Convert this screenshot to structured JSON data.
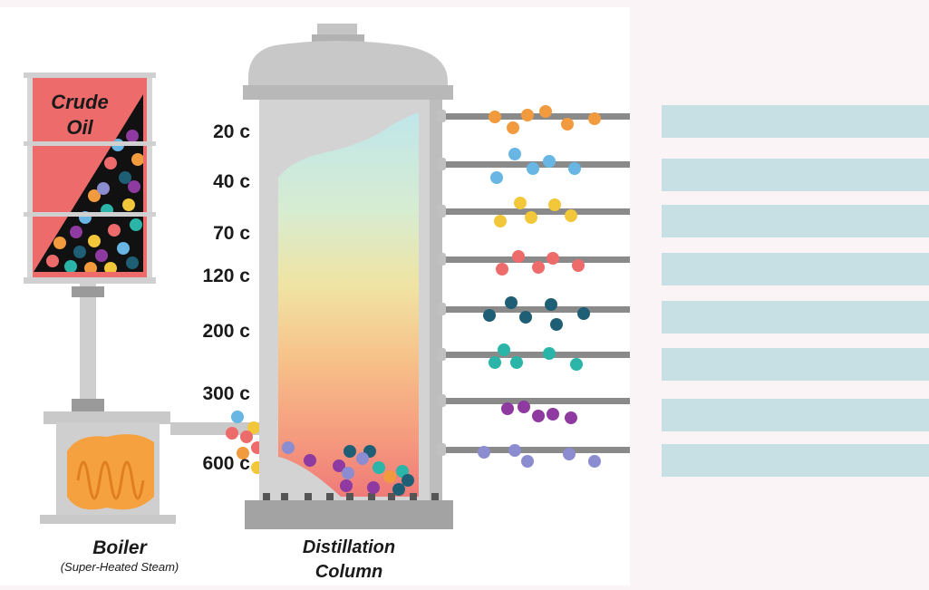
{
  "crude_oil": {
    "label_line1": "Crude",
    "label_line2": "Oil"
  },
  "temperatures": [
    "20 c",
    "40 c",
    "70 c",
    "120 c",
    "200 c",
    "300 c",
    "600 c"
  ],
  "boiler": {
    "label": "Boiler",
    "sublabel": "(Super-Heated Steam)"
  },
  "column": {
    "label_line1": "Distillation",
    "label_line2": "Column"
  },
  "fraction_colors": [
    "#f29a3e",
    "#67b6e4",
    "#f2c73a",
    "#ee6b6b",
    "#1f5f75",
    "#2bb5a8",
    "#8e3aa0",
    "#8c8cd0"
  ],
  "answer_boxes": [
    "",
    "",
    "",
    "",
    "",
    "",
    "",
    ""
  ]
}
